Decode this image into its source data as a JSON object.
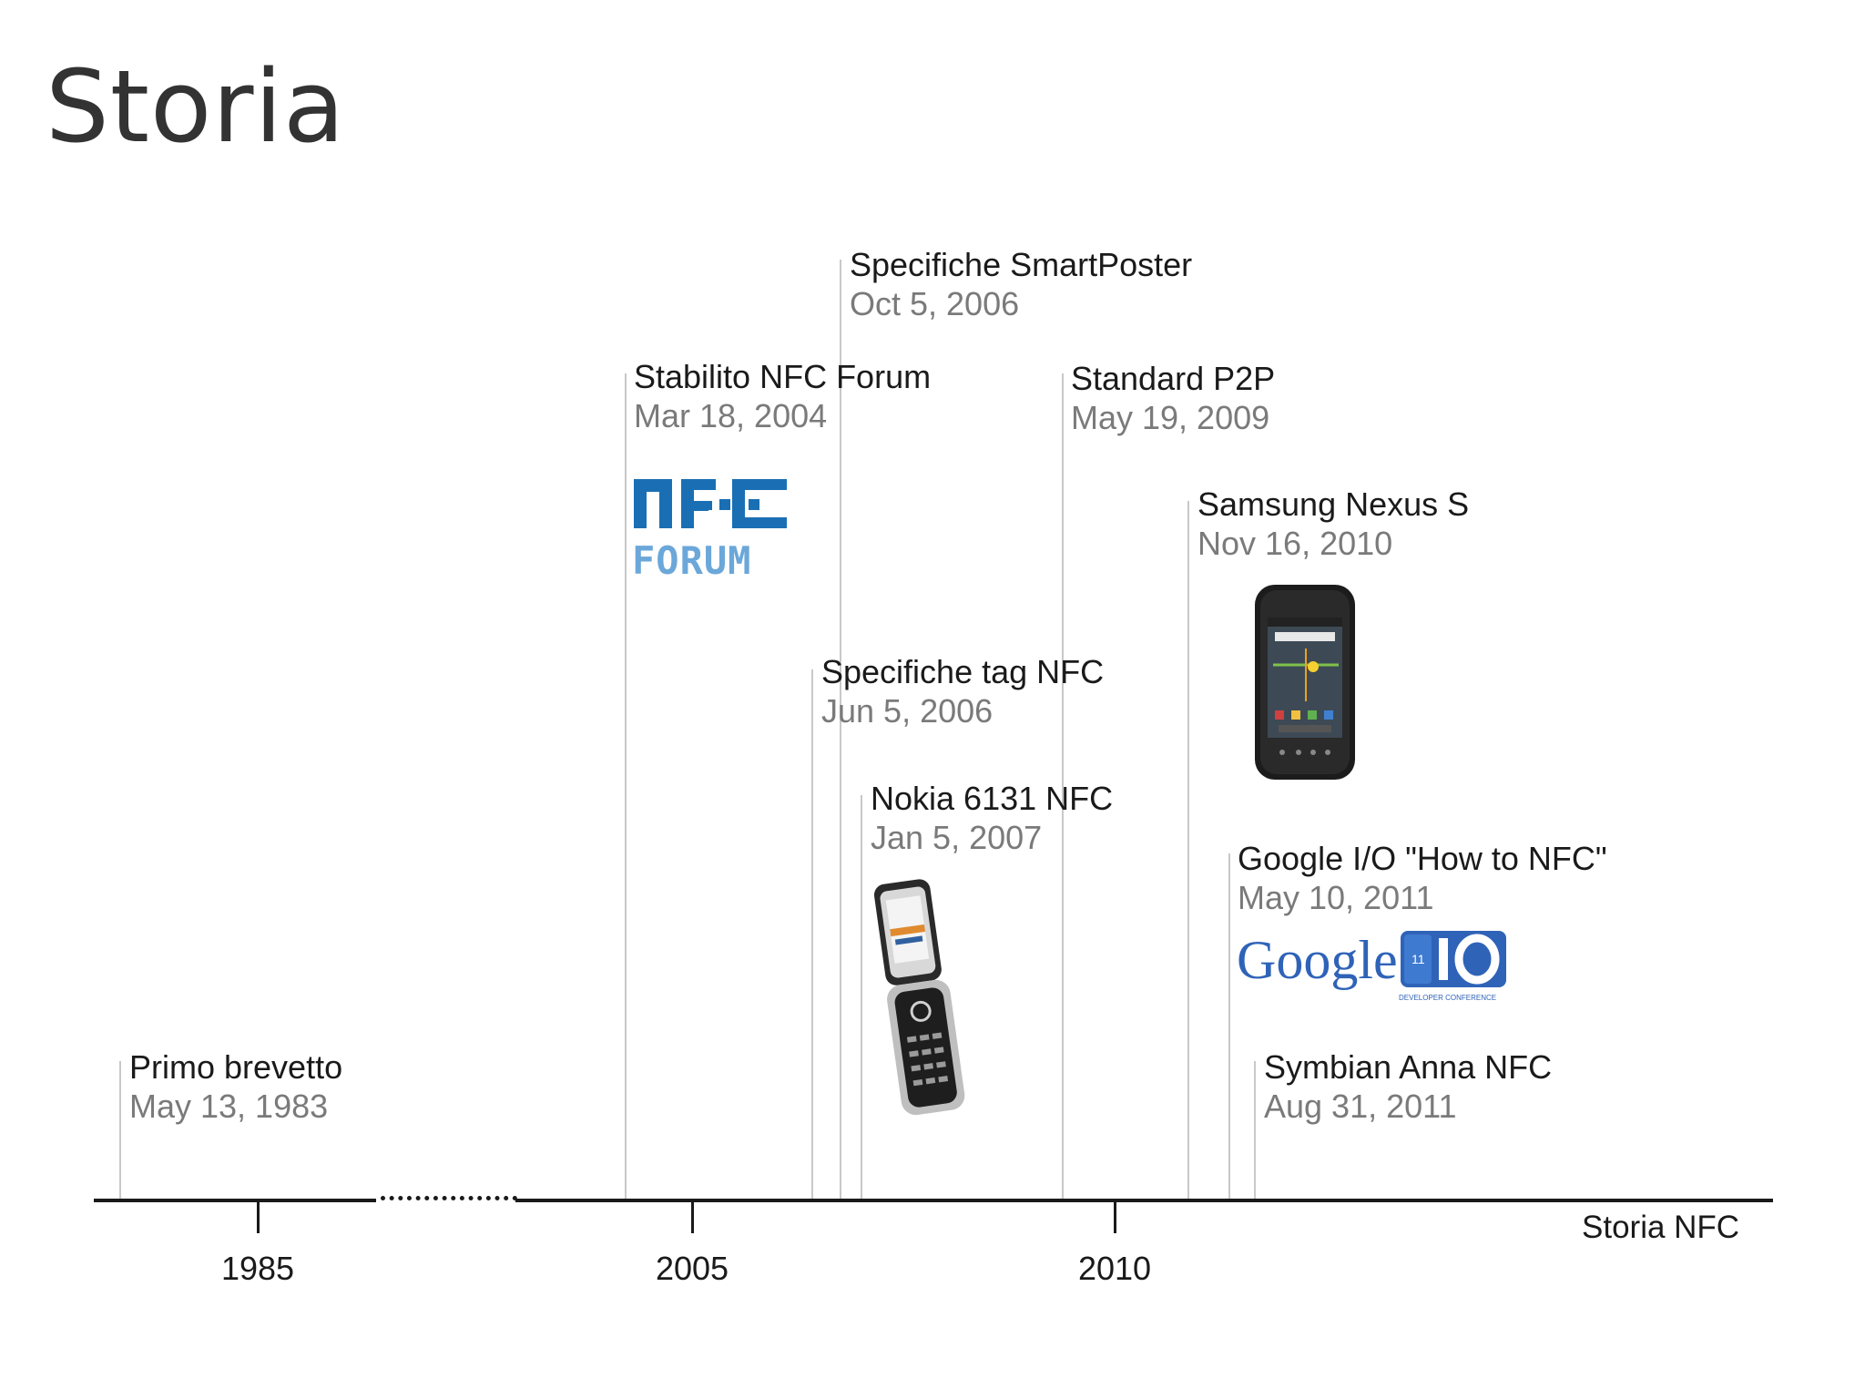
{
  "slide": {
    "title": "Storia"
  },
  "timeline": {
    "axis_label": "Storia NFC",
    "ticks": [
      "1985",
      "2005",
      "2010"
    ],
    "events": [
      {
        "name": "Primo brevetto",
        "date": "May 13, 1983"
      },
      {
        "name": "Stabilito NFC Forum",
        "date": "Mar 18, 2004"
      },
      {
        "name": "Specifiche tag NFC",
        "date": "Jun 5, 2006"
      },
      {
        "name": "Specifiche SmartPoster",
        "date": "Oct 5, 2006"
      },
      {
        "name": "Nokia 6131 NFC",
        "date": "Jan 5, 2007"
      },
      {
        "name": "Standard P2P",
        "date": "May 19, 2009"
      },
      {
        "name": "Samsung Nexus S",
        "date": "Nov 16, 2010"
      },
      {
        "name": "Google I/O \"How to NFC\"",
        "date": "May 10, 2011"
      },
      {
        "name": "Symbian Anna NFC",
        "date": "Aug 31, 2011"
      }
    ]
  },
  "logos": {
    "nfc_forum": {
      "top_text": "NFC",
      "bottom_text": "FORUM",
      "color": "#1a6fb4"
    },
    "google_io": {
      "google_text": "Google",
      "io_text": "I/O",
      "badge_number": "11",
      "caption": "DEVELOPER CONFERENCE",
      "color": "#2f63b8"
    }
  },
  "colors": {
    "text": "#1a1a1a",
    "date": "#7a7a7a",
    "line": "#c8c8c8",
    "axis": "#1a1a1a"
  }
}
